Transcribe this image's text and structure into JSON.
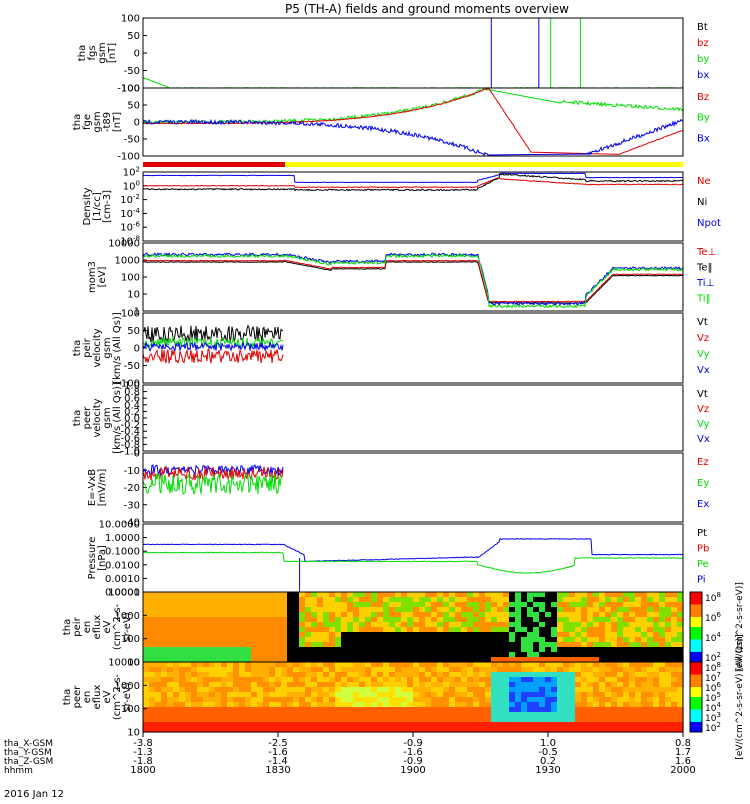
{
  "title": "P5 (TH-A) fields and ground moments overview",
  "date": "2016 Jan 12",
  "colors": {
    "black": "#000000",
    "red": "#e00000",
    "green": "#00dd00",
    "blue": "#0000ee",
    "yellow": "#ffff00"
  },
  "chart_data": [
    {
      "type": "line",
      "ylabel": [
        "tha",
        "fgs",
        "gsm",
        "[nT]"
      ],
      "yticks": [
        "100",
        "50",
        "0",
        "-50",
        "-100"
      ],
      "ylim": [
        -100,
        100
      ],
      "legend": [
        {
          "name": "Bt",
          "color": "black"
        },
        {
          "name": "bz",
          "color": "red"
        },
        {
          "name": "by",
          "color": "green"
        },
        {
          "name": "bx",
          "color": "blue"
        }
      ]
    },
    {
      "type": "line",
      "ylabel": [
        "tha",
        "fge",
        "gsm",
        "-t89",
        "[nT]"
      ],
      "yticks": [
        "100",
        "50",
        "0",
        "-50",
        "-100"
      ],
      "ylim": [
        -125,
        125
      ],
      "legend": [
        {
          "name": "Bz",
          "color": "red"
        },
        {
          "name": "By",
          "color": "green"
        },
        {
          "name": "Bx",
          "color": "blue"
        }
      ]
    },
    {
      "type": "line",
      "log": true,
      "ylabel": [
        "Density",
        "[1/cc]",
        "[cm-3]"
      ],
      "yticks": [
        "10^2",
        "10^0",
        "10^-2",
        "10^-4",
        "10^-6",
        "10^-8"
      ],
      "legend": [
        {
          "name": "Ne",
          "color": "red"
        },
        {
          "name": "Ni",
          "color": "black"
        },
        {
          "name": "Npot",
          "color": "blue"
        }
      ]
    },
    {
      "type": "line",
      "log": true,
      "ylabel": [
        "mom3",
        "[eV]"
      ],
      "yticks": [
        "10000",
        "1000",
        "100",
        "10",
        "1"
      ],
      "legend": [
        {
          "name": "Te⊥",
          "color": "red"
        },
        {
          "name": "Te‖",
          "color": "black"
        },
        {
          "name": "Ti⊥",
          "color": "blue"
        },
        {
          "name": "Ti‖",
          "color": "green"
        }
      ]
    },
    {
      "type": "line",
      "ylabel": [
        "tha",
        "peir",
        "velocity",
        "gsm",
        "[km/s (All Qs)]"
      ],
      "yticks": [
        "100",
        "50",
        "0",
        "-50",
        "-100"
      ],
      "ylim": [
        -100,
        100
      ],
      "legend": [
        {
          "name": "Vt",
          "color": "black"
        },
        {
          "name": "Vz",
          "color": "red"
        },
        {
          "name": "Vy",
          "color": "green"
        },
        {
          "name": "Vx",
          "color": "blue"
        }
      ]
    },
    {
      "type": "line",
      "ylabel": [
        "tha",
        "peer",
        "velocity",
        "gsm",
        "[km/s (All Qs)]"
      ],
      "yticks": [
        "1.0",
        "0.8",
        "0.6",
        "0.4",
        "0.2",
        "0.0",
        "-0.2",
        "-0.4",
        "-0.6",
        "-0.8",
        "-1.0"
      ],
      "ylim": [
        -1,
        1
      ],
      "legend": [
        {
          "name": "Vt",
          "color": "black"
        },
        {
          "name": "Vz",
          "color": "red"
        },
        {
          "name": "Vy",
          "color": "green"
        },
        {
          "name": "Vx",
          "color": "blue"
        }
      ]
    },
    {
      "type": "line",
      "ylabel": [
        "E=-VxB",
        "[mV/m]"
      ],
      "yticks": [
        "0",
        "-10",
        "-20",
        "-30",
        "-40"
      ],
      "ylim": [
        -40,
        5
      ],
      "legend": [
        {
          "name": "Ez",
          "color": "red"
        },
        {
          "name": "Ey",
          "color": "green"
        },
        {
          "name": "Ex",
          "color": "blue"
        }
      ]
    },
    {
      "type": "line",
      "log": true,
      "ylabel": [
        "Pressure",
        "[nPa]"
      ],
      "yticks": [
        "10.0000",
        "1.0000",
        "0.1000",
        "0.0100",
        "0.0010",
        "0.0001"
      ],
      "legend": [
        {
          "name": "Pt",
          "color": "black"
        },
        {
          "name": "Pb",
          "color": "red"
        },
        {
          "name": "Pe",
          "color": "green"
        },
        {
          "name": "Pi",
          "color": "blue"
        }
      ]
    },
    {
      "type": "heatmap",
      "ylabel": [
        "tha",
        "peir",
        "en",
        "eflux",
        "eV",
        "(cm^2-s-",
        "sr-eV)"
      ],
      "yticks": [
        "10000",
        "1000",
        "100",
        "10"
      ],
      "colorbar_ticks": [
        "10^8",
        "10^6",
        "10^4",
        "10^2"
      ],
      "colorbar_label": "[eV/(cm^2-s-sr-eV)]"
    },
    {
      "type": "heatmap",
      "ylabel": [
        "tha",
        "peer",
        "en",
        "eflux",
        "eV",
        "(cm^2-s-",
        "sr-eV)"
      ],
      "yticks": [
        "10000",
        "1000",
        "100",
        "10"
      ],
      "colorbar_ticks": [
        "10^8",
        "10^7",
        "10^6",
        "10^5",
        "10^4",
        "10^3",
        "10^2"
      ],
      "colorbar_label": "[eV/(cm^2-s-sr-eV) (All Qs)]"
    }
  ],
  "xaxis": {
    "row_labels": [
      "tha_X-GSM",
      "tha_Y-GSM",
      "tha_Z-GSM",
      "hhmm"
    ],
    "columns": [
      {
        "vals": [
          "-3.8",
          "-1.3",
          "-1.8",
          "1800"
        ]
      },
      {
        "vals": [
          "-2.5",
          "-1.6",
          "-1.4",
          "1830"
        ]
      },
      {
        "vals": [
          "-0.9",
          "-1.6",
          "-0.9",
          "1900"
        ]
      },
      {
        "vals": [
          "1.0",
          "-0.5",
          "0.2",
          "1930"
        ]
      },
      {
        "vals": [
          "0.8",
          "1.7",
          "1.6",
          "2000"
        ]
      }
    ]
  }
}
